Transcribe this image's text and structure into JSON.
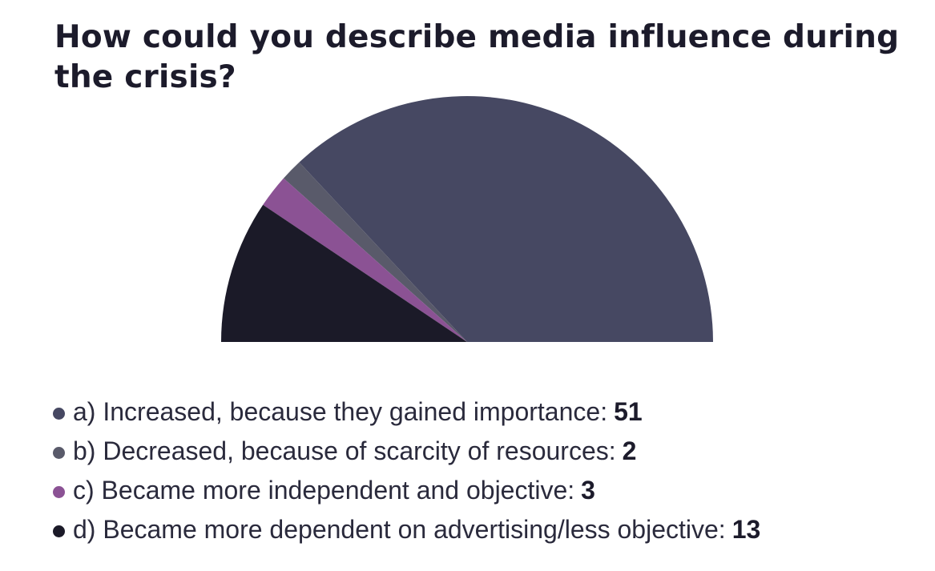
{
  "title": "How could you describe media influence during the crisis?",
  "colors": {
    "a": "#464862",
    "b": "#595a6a",
    "c": "#8b5294",
    "d": "#1b1a28"
  },
  "chart_data": {
    "type": "pie",
    "variant": "semicircle",
    "title": "How could you describe media influence during the crisis?",
    "slices": [
      {
        "key": "a",
        "label": "a) Increased, because they gained importance",
        "value": 51
      },
      {
        "key": "b",
        "label": "b) Decreased, because of scarcity of resources",
        "value": 2
      },
      {
        "key": "c",
        "label": "c) Became more independent and objective",
        "value": 3
      },
      {
        "key": "d",
        "label": "d) Became more dependent on advertising/less objective",
        "value": 13
      }
    ]
  }
}
